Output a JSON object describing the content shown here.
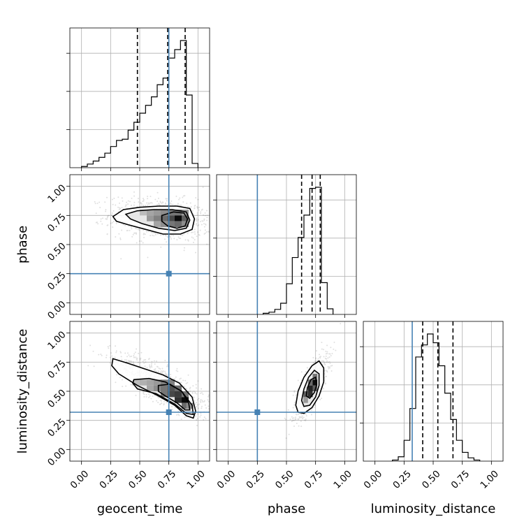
{
  "chart_data": {
    "type": "corner",
    "parameters": [
      "geocent_time",
      "phase",
      "luminosity_distance"
    ],
    "labels": {
      "geocent_time": "geocent_time",
      "phase": "phase",
      "luminosity_distance": "luminosity_distance"
    },
    "tick_values": [
      0.0,
      0.25,
      0.5,
      0.75,
      1.0
    ],
    "tick_labels": [
      "0.00",
      "0.25",
      "0.50",
      "0.75",
      "1.00"
    ],
    "axis_range": [
      -0.1,
      1.1
    ],
    "grid": true,
    "truths": {
      "geocent_time": 0.75,
      "phase": 0.25,
      "luminosity_distance": 0.32
    },
    "truth_color": "#4682b4",
    "quantiles": {
      "geocent_time": [
        0.48,
        0.74,
        0.89
      ],
      "phase": [
        0.63,
        0.72,
        0.79
      ],
      "luminosity_distance": [
        0.41,
        0.54,
        0.67
      ]
    },
    "histograms": {
      "geocent_time": {
        "bin_edges": [
          0.0,
          0.05,
          0.1,
          0.15,
          0.2,
          0.25,
          0.3,
          0.35,
          0.4,
          0.45,
          0.5,
          0.55,
          0.6,
          0.65,
          0.7,
          0.75,
          0.8,
          0.85,
          0.9,
          0.95,
          1.0
        ],
        "counts": [
          2,
          6,
          11,
          17,
          24,
          35,
          45,
          47,
          62,
          75,
          90,
          103,
          117,
          137,
          148,
          181,
          195,
          210,
          120,
          7
        ]
      },
      "phase": {
        "bin_edges": [
          0.3,
          0.35,
          0.4,
          0.45,
          0.5,
          0.55,
          0.6,
          0.65,
          0.7,
          0.75,
          0.8,
          0.85,
          0.9
        ],
        "counts": [
          2,
          4,
          9,
          20,
          55,
          102,
          138,
          178,
          226,
          228,
          57,
          10
        ]
      },
      "luminosity_distance": {
        "bin_edges": [
          0.15,
          0.2,
          0.25,
          0.3,
          0.35,
          0.4,
          0.45,
          0.5,
          0.55,
          0.6,
          0.65,
          0.7,
          0.75,
          0.8,
          0.85,
          0.9
        ],
        "counts": [
          1,
          4,
          19,
          48,
          95,
          106,
          116,
          108,
          87,
          62,
          38,
          19,
          8,
          3,
          1
        ]
      }
    },
    "joint": [
      {
        "x": "geocent_time",
        "y": "phase",
        "contours": [
          [
            [
              0.27,
              0.74
            ],
            [
              0.36,
              0.8
            ],
            [
              0.5,
              0.82
            ],
            [
              0.66,
              0.83
            ],
            [
              0.82,
              0.83
            ],
            [
              0.93,
              0.81
            ],
            [
              0.97,
              0.72
            ],
            [
              0.95,
              0.63
            ],
            [
              0.85,
              0.59
            ],
            [
              0.7,
              0.59
            ],
            [
              0.55,
              0.63
            ],
            [
              0.4,
              0.67
            ],
            [
              0.3,
              0.7
            ]
          ],
          [
            [
              0.38,
              0.76
            ],
            [
              0.48,
              0.79
            ],
            [
              0.62,
              0.8
            ],
            [
              0.78,
              0.8
            ],
            [
              0.9,
              0.78
            ],
            [
              0.93,
              0.71
            ],
            [
              0.9,
              0.64
            ],
            [
              0.8,
              0.62
            ],
            [
              0.66,
              0.64
            ],
            [
              0.52,
              0.68
            ],
            [
              0.42,
              0.72
            ]
          ],
          [
            [
              0.69,
              0.75
            ],
            [
              0.79,
              0.78
            ],
            [
              0.88,
              0.77
            ],
            [
              0.91,
              0.72
            ],
            [
              0.89,
              0.66
            ],
            [
              0.82,
              0.64
            ],
            [
              0.74,
              0.66
            ],
            [
              0.69,
              0.7
            ]
          ]
        ],
        "density_cells": [
          {
            "x": 0.53,
            "y": 0.775,
            "v": 0.2
          },
          {
            "x": 0.59,
            "y": 0.775,
            "v": 0.3
          },
          {
            "x": 0.65,
            "y": 0.775,
            "v": 0.35
          },
          {
            "x": 0.71,
            "y": 0.775,
            "v": 0.4
          },
          {
            "x": 0.77,
            "y": 0.775,
            "v": 0.5
          },
          {
            "x": 0.83,
            "y": 0.775,
            "v": 0.5
          },
          {
            "x": 0.89,
            "y": 0.775,
            "v": 0.35
          },
          {
            "x": 0.59,
            "y": 0.725,
            "v": 0.35
          },
          {
            "x": 0.65,
            "y": 0.725,
            "v": 0.45
          },
          {
            "x": 0.71,
            "y": 0.725,
            "v": 0.55
          },
          {
            "x": 0.77,
            "y": 0.725,
            "v": 0.7
          },
          {
            "x": 0.83,
            "y": 0.725,
            "v": 0.95
          },
          {
            "x": 0.89,
            "y": 0.725,
            "v": 0.6
          },
          {
            "x": 0.65,
            "y": 0.675,
            "v": 0.3
          },
          {
            "x": 0.71,
            "y": 0.675,
            "v": 0.4
          },
          {
            "x": 0.77,
            "y": 0.675,
            "v": 0.5
          },
          {
            "x": 0.83,
            "y": 0.675,
            "v": 0.55
          },
          {
            "x": 0.89,
            "y": 0.675,
            "v": 0.4
          }
        ],
        "scatter": {
          "cx": 0.68,
          "cy": 0.72,
          "sx": 0.22,
          "sy": 0.09,
          "rho": -0.2,
          "n": 900
        }
      },
      {
        "x": "geocent_time",
        "y": "luminosity_distance",
        "contours": [
          [
            [
              0.27,
              0.78
            ],
            [
              0.4,
              0.74
            ],
            [
              0.55,
              0.69
            ],
            [
              0.7,
              0.64
            ],
            [
              0.84,
              0.57
            ],
            [
              0.95,
              0.45
            ],
            [
              0.98,
              0.33
            ],
            [
              0.96,
              0.27
            ],
            [
              0.9,
              0.29
            ],
            [
              0.8,
              0.38
            ],
            [
              0.66,
              0.46
            ],
            [
              0.48,
              0.55
            ],
            [
              0.32,
              0.65
            ],
            [
              0.26,
              0.72
            ]
          ],
          [
            [
              0.45,
              0.6
            ],
            [
              0.58,
              0.61
            ],
            [
              0.72,
              0.58
            ],
            [
              0.86,
              0.5
            ],
            [
              0.95,
              0.38
            ],
            [
              0.96,
              0.3
            ],
            [
              0.9,
              0.31
            ],
            [
              0.8,
              0.39
            ],
            [
              0.64,
              0.48
            ],
            [
              0.48,
              0.52
            ],
            [
              0.44,
              0.57
            ]
          ],
          [
            [
              0.66,
              0.55
            ],
            [
              0.76,
              0.56
            ],
            [
              0.86,
              0.5
            ],
            [
              0.92,
              0.4
            ],
            [
              0.93,
              0.34
            ],
            [
              0.89,
              0.34
            ],
            [
              0.82,
              0.4
            ],
            [
              0.72,
              0.46
            ],
            [
              0.66,
              0.5
            ]
          ]
        ],
        "density_cells": [
          {
            "x": 0.47,
            "y": 0.575,
            "v": 0.2
          },
          {
            "x": 0.53,
            "y": 0.575,
            "v": 0.25
          },
          {
            "x": 0.59,
            "y": 0.575,
            "v": 0.3
          },
          {
            "x": 0.65,
            "y": 0.575,
            "v": 0.35
          },
          {
            "x": 0.71,
            "y": 0.575,
            "v": 0.45
          },
          {
            "x": 0.77,
            "y": 0.575,
            "v": 0.45
          },
          {
            "x": 0.59,
            "y": 0.525,
            "v": 0.3
          },
          {
            "x": 0.65,
            "y": 0.525,
            "v": 0.4
          },
          {
            "x": 0.71,
            "y": 0.525,
            "v": 0.5
          },
          {
            "x": 0.77,
            "y": 0.525,
            "v": 0.65
          },
          {
            "x": 0.83,
            "y": 0.525,
            "v": 0.55
          },
          {
            "x": 0.71,
            "y": 0.475,
            "v": 0.5
          },
          {
            "x": 0.77,
            "y": 0.475,
            "v": 0.7
          },
          {
            "x": 0.83,
            "y": 0.475,
            "v": 0.75
          },
          {
            "x": 0.89,
            "y": 0.475,
            "v": 0.5
          },
          {
            "x": 0.83,
            "y": 0.425,
            "v": 0.8
          },
          {
            "x": 0.89,
            "y": 0.425,
            "v": 0.95
          },
          {
            "x": 0.89,
            "y": 0.375,
            "v": 0.55
          },
          {
            "x": 0.93,
            "y": 0.375,
            "v": 0.4
          }
        ],
        "scatter": {
          "cx": 0.7,
          "cy": 0.55,
          "sx": 0.2,
          "sy": 0.13,
          "rho": -0.8,
          "n": 900
        }
      },
      {
        "x": "phase",
        "y": "luminosity_distance",
        "contours": [
          [
            [
              0.58,
              0.38
            ],
            [
              0.6,
              0.5
            ],
            [
              0.65,
              0.62
            ],
            [
              0.72,
              0.72
            ],
            [
              0.78,
              0.76
            ],
            [
              0.82,
              0.7
            ],
            [
              0.82,
              0.58
            ],
            [
              0.78,
              0.46
            ],
            [
              0.72,
              0.36
            ],
            [
              0.65,
              0.31
            ],
            [
              0.6,
              0.32
            ]
          ],
          [
            [
              0.63,
              0.42
            ],
            [
              0.65,
              0.52
            ],
            [
              0.69,
              0.62
            ],
            [
              0.74,
              0.68
            ],
            [
              0.78,
              0.65
            ],
            [
              0.78,
              0.55
            ],
            [
              0.75,
              0.45
            ],
            [
              0.7,
              0.38
            ],
            [
              0.65,
              0.37
            ]
          ],
          [
            [
              0.67,
              0.46
            ],
            [
              0.68,
              0.53
            ],
            [
              0.71,
              0.6
            ],
            [
              0.75,
              0.62
            ],
            [
              0.76,
              0.56
            ],
            [
              0.74,
              0.49
            ],
            [
              0.7,
              0.44
            ]
          ]
        ],
        "density_cells": [
          {
            "x": 0.665,
            "y": 0.475,
            "v": 0.6
          },
          {
            "x": 0.705,
            "y": 0.475,
            "v": 0.8
          },
          {
            "x": 0.705,
            "y": 0.525,
            "v": 0.85
          },
          {
            "x": 0.745,
            "y": 0.525,
            "v": 0.6
          },
          {
            "x": 0.745,
            "y": 0.575,
            "v": 0.95
          },
          {
            "x": 0.705,
            "y": 0.575,
            "v": 0.55
          },
          {
            "x": 0.745,
            "y": 0.625,
            "v": 0.5
          },
          {
            "x": 0.665,
            "y": 0.425,
            "v": 0.35
          }
        ],
        "scatter": {
          "cx": 0.71,
          "cy": 0.54,
          "sx": 0.07,
          "sy": 0.13,
          "rho": 0.75,
          "n": 900
        }
      }
    ]
  }
}
